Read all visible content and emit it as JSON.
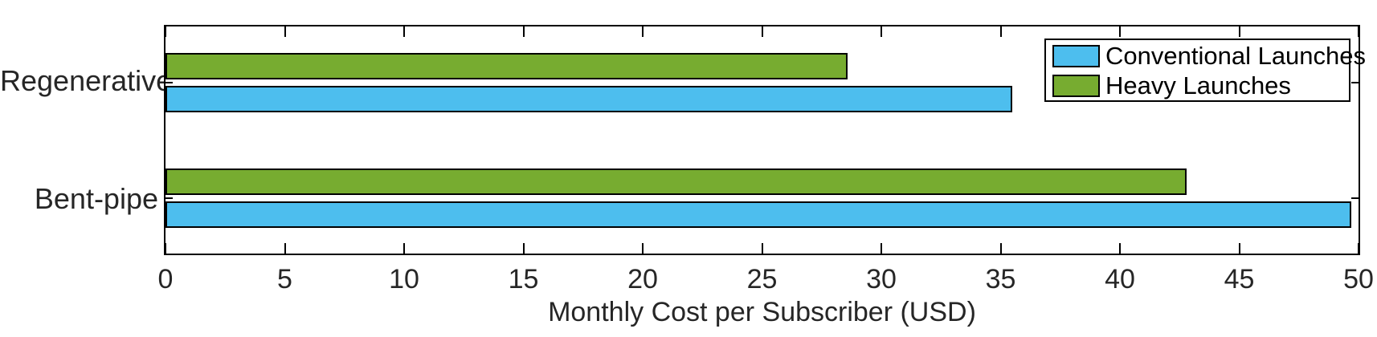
{
  "figure": {
    "background": "#ffffff",
    "line_color": "#000000",
    "text_color": "#262626"
  },
  "chart_data": {
    "type": "bar",
    "orientation": "horizontal",
    "title": "",
    "xlabel": "Monthly Cost per Subscriber (USD)",
    "ylabel": "",
    "categories": [
      "Regenerative",
      "Bent-pipe"
    ],
    "series": [
      {
        "name": "Conventional Launches",
        "color": "#4DBEEE",
        "values": [
          35.5,
          49.7
        ]
      },
      {
        "name": "Heavy Launches",
        "color": "#77AC30",
        "values": [
          28.6,
          42.8
        ]
      }
    ],
    "xlim": [
      0,
      50
    ],
    "xticks": [
      0,
      5,
      10,
      15,
      20,
      25,
      30,
      35,
      40,
      45,
      50
    ],
    "grid": false,
    "bar_edge_color": "#000000",
    "legend": {
      "position": "top-right",
      "entries": [
        "Conventional Launches",
        "Heavy Launches"
      ]
    }
  }
}
